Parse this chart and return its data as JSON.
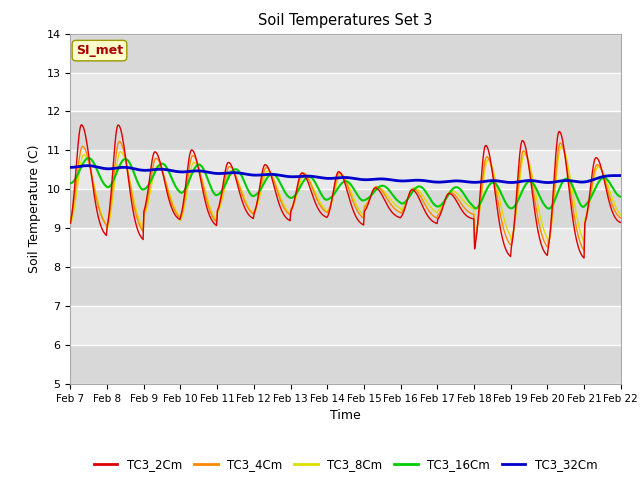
{
  "title": "Soil Temperatures Set 3",
  "xlabel": "Time",
  "ylabel": "Soil Temperature (C)",
  "ylim": [
    5.0,
    14.0
  ],
  "yticks": [
    5.0,
    6.0,
    7.0,
    8.0,
    9.0,
    10.0,
    11.0,
    12.0,
    13.0,
    14.0
  ],
  "fig_bg_color": "#ffffff",
  "plot_bg_color": "#e8e8e8",
  "grid_stripe_color": "#d8d8d8",
  "line_colors": {
    "TC3_2Cm": "#dd0000",
    "TC3_4Cm": "#ff8800",
    "TC3_8Cm": "#dddd00",
    "TC3_16Cm": "#00cc00",
    "TC3_32Cm": "#0000cc"
  },
  "annotation_text": "SI_met",
  "annotation_color": "#aa0000",
  "annotation_bg": "#ffffcc",
  "annotation_border": "#999900",
  "x_labels": [
    "Feb 7",
    "Feb 8",
    "Feb 9",
    "Feb 10",
    "Feb 11",
    "Feb 12",
    "Feb 13",
    "Feb 14",
    "Feb 15",
    "Feb 16",
    "Feb 17",
    "Feb 18",
    "Feb 19",
    "Feb 20",
    "Feb 21",
    "Feb 22"
  ],
  "legend_labels": [
    "TC3_2Cm",
    "TC3_4Cm",
    "TC3_8Cm",
    "TC3_16Cm",
    "TC3_32Cm"
  ]
}
